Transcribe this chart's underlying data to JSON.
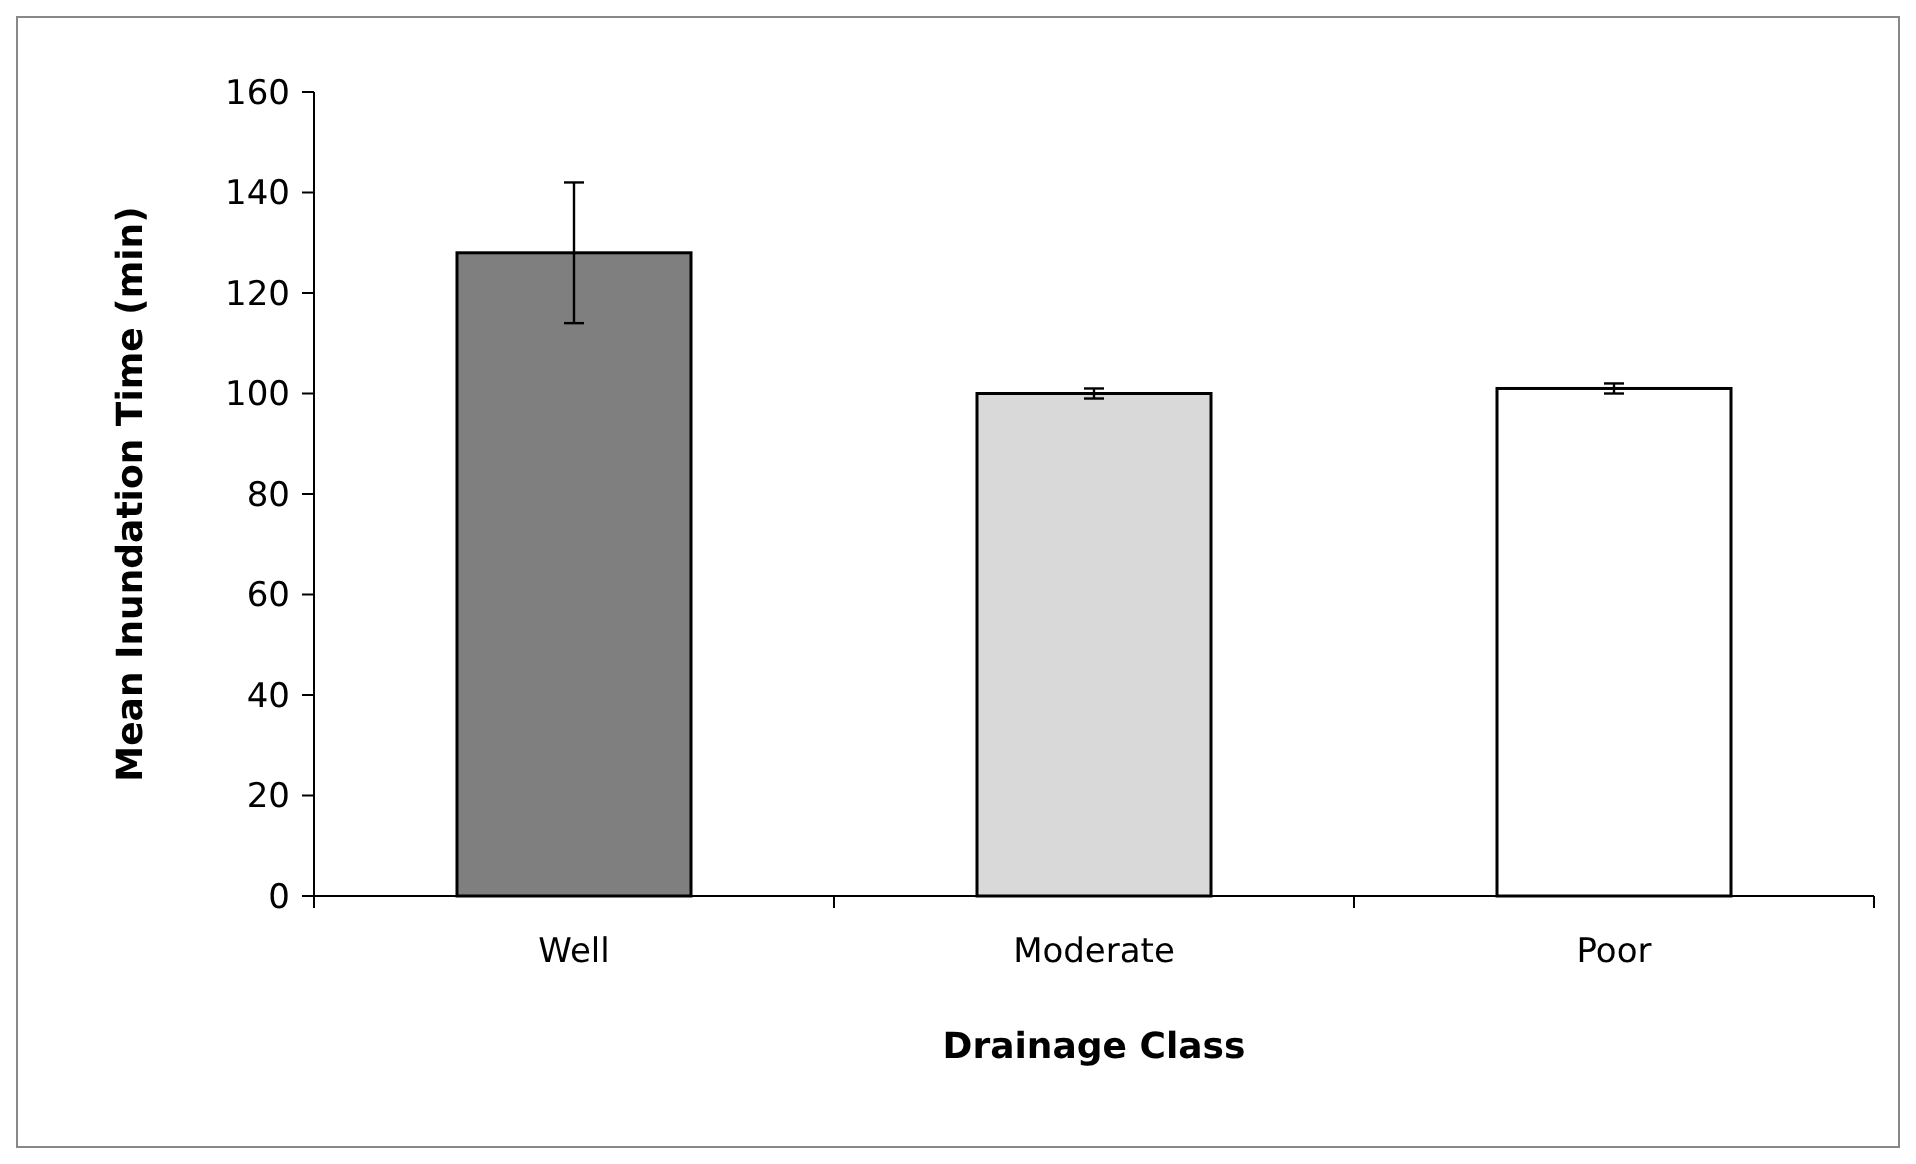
{
  "chart_data": {
    "type": "bar",
    "xlabel": "Drainage Class",
    "ylabel": "Mean Inundation Time (min)",
    "categories": [
      "Well",
      "Moderate",
      "Poor"
    ],
    "values": [
      128,
      100,
      101
    ],
    "colors": [
      "#7f7f7f",
      "#d9d9d9",
      "#ffffff"
    ],
    "errors": [
      14,
      1,
      1
    ],
    "ylim": [
      0,
      160
    ],
    "yticks": [
      0,
      20,
      40,
      60,
      80,
      100,
      120,
      140,
      160
    ],
    "grid": false
  }
}
